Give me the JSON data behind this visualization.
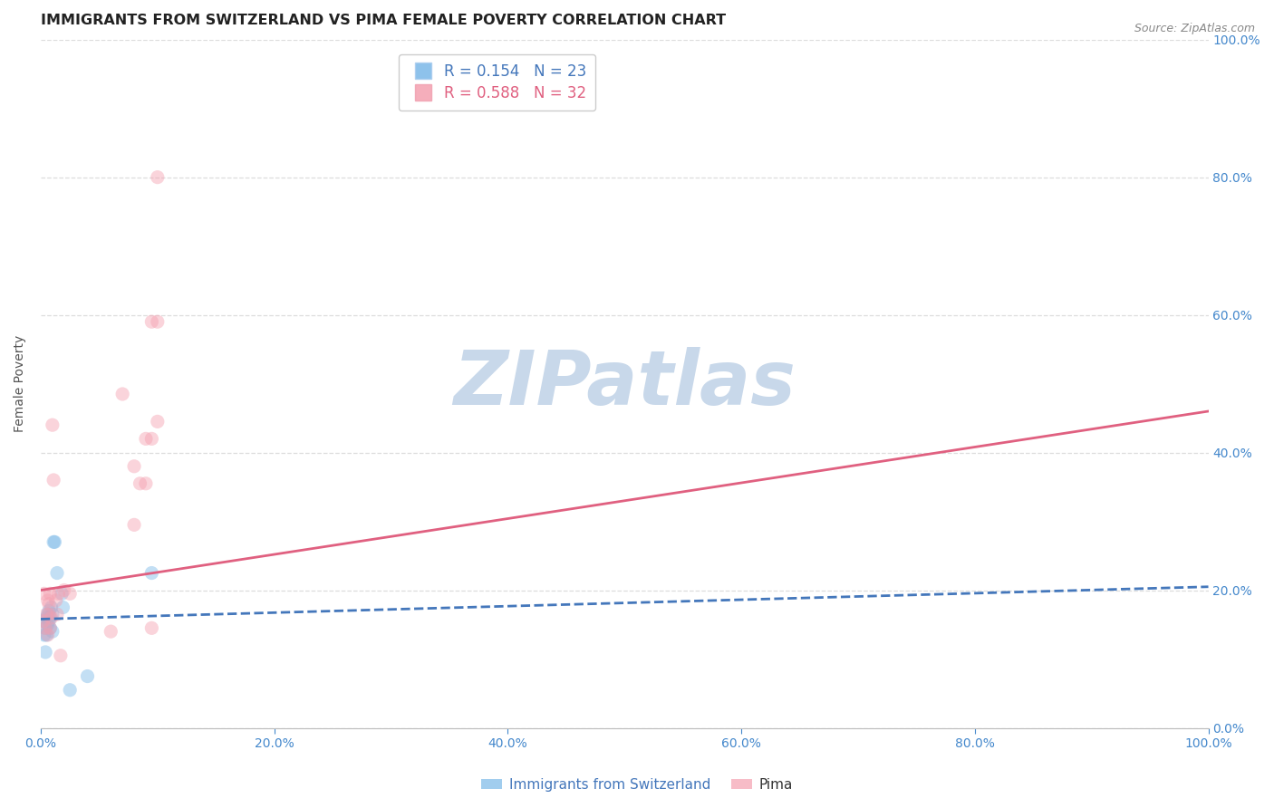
{
  "title": "IMMIGRANTS FROM SWITZERLAND VS PIMA FEMALE POVERTY CORRELATION CHART",
  "source": "Source: ZipAtlas.com",
  "ylabel": "Female Poverty",
  "xlim": [
    0.0,
    1.0
  ],
  "ylim": [
    0.0,
    1.0
  ],
  "xticks": [
    0.0,
    0.2,
    0.4,
    0.6,
    0.8,
    1.0
  ],
  "yticks": [
    0.0,
    0.2,
    0.4,
    0.6,
    0.8,
    1.0
  ],
  "xtick_labels": [
    "0.0%",
    "20.0%",
    "40.0%",
    "60.0%",
    "80.0%",
    "100.0%"
  ],
  "ytick_labels_right": [
    "0.0%",
    "20.0%",
    "40.0%",
    "60.0%",
    "80.0%",
    "100.0%"
  ],
  "background_color": "#ffffff",
  "grid_color": "#dddddd",
  "watermark": "ZIPatlas",
  "legend_r_blue": "R = 0.154",
  "legend_n_blue": "N = 23",
  "legend_r_pink": "R = 0.588",
  "legend_n_pink": "N = 32",
  "legend_label_blue": "Immigrants from Switzerland",
  "legend_label_pink": "Pima",
  "blue_scatter_x": [
    0.002,
    0.003,
    0.004,
    0.004,
    0.005,
    0.005,
    0.006,
    0.006,
    0.007,
    0.007,
    0.008,
    0.008,
    0.009,
    0.01,
    0.01,
    0.011,
    0.012,
    0.014,
    0.018,
    0.019,
    0.025,
    0.04,
    0.095
  ],
  "blue_scatter_y": [
    0.155,
    0.135,
    0.11,
    0.145,
    0.16,
    0.135,
    0.165,
    0.15,
    0.17,
    0.155,
    0.16,
    0.145,
    0.175,
    0.165,
    0.14,
    0.27,
    0.27,
    0.225,
    0.195,
    0.175,
    0.055,
    0.075,
    0.225
  ],
  "pink_scatter_x": [
    0.002,
    0.003,
    0.004,
    0.005,
    0.006,
    0.006,
    0.007,
    0.007,
    0.008,
    0.008,
    0.009,
    0.01,
    0.011,
    0.013,
    0.014,
    0.015,
    0.017,
    0.02,
    0.025,
    0.06,
    0.07,
    0.08,
    0.08,
    0.085,
    0.09,
    0.09,
    0.095,
    0.095,
    0.095,
    0.1,
    0.1,
    0.1
  ],
  "pink_scatter_y": [
    0.155,
    0.195,
    0.145,
    0.165,
    0.135,
    0.185,
    0.165,
    0.18,
    0.145,
    0.195,
    0.16,
    0.44,
    0.36,
    0.185,
    0.165,
    0.195,
    0.105,
    0.2,
    0.195,
    0.14,
    0.485,
    0.295,
    0.38,
    0.355,
    0.42,
    0.355,
    0.145,
    0.59,
    0.42,
    0.59,
    0.445,
    0.8
  ],
  "blue_line_x_start": 0.0,
  "blue_line_x_end": 1.0,
  "blue_line_y_start": 0.158,
  "blue_line_y_end": 0.205,
  "pink_line_x_start": 0.0,
  "pink_line_x_end": 1.0,
  "pink_line_y_start": 0.2,
  "pink_line_y_end": 0.46,
  "scatter_size": 120,
  "scatter_alpha": 0.45,
  "blue_color": "#7ab8e8",
  "pink_color": "#f4a0b0",
  "blue_line_color": "#4477bb",
  "pink_line_color": "#e06080",
  "title_fontsize": 11.5,
  "axis_label_fontsize": 10,
  "tick_fontsize": 10,
  "tick_color": "#4488cc",
  "watermark_color": "#c8d8ea",
  "watermark_fontsize": 60,
  "source_fontsize": 9
}
